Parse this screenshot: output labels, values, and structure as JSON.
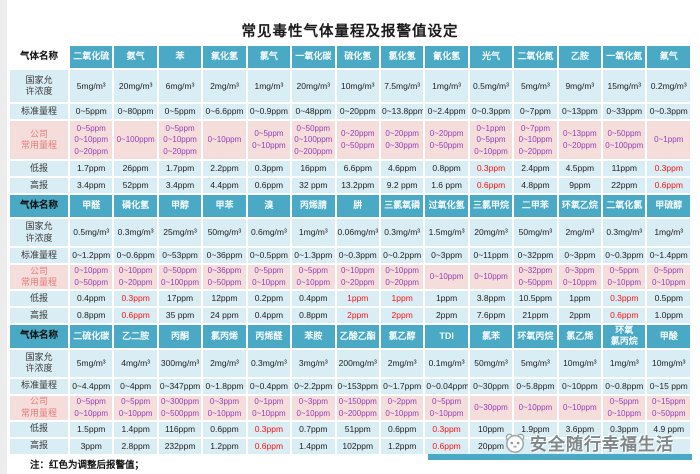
{
  "title": "常见毒性气体量程及报警值设定",
  "note": "注：红色为调整后报警值；",
  "watermark": {
    "text": "安全随行幸福生活",
    "logo": "mascot-logo"
  },
  "colors": {
    "header_teal": "#4AA9C4",
    "row_blue": "#D9EDF4",
    "row_pink": "#F5DDDC",
    "value_purple": "#9440B3",
    "label_rose": "#E57C7C",
    "alert_red": "#FF1414"
  },
  "row_labels": {
    "gas": "气体名称",
    "national": "国家允\n许浓度",
    "standard": "标准量程",
    "company": "公司\n常用量程",
    "low": "低报",
    "high": "高报"
  },
  "sections": [
    {
      "gases": [
        {
          "name": "二氧化硫",
          "limit": "5mg/m³",
          "std": "0~5ppm",
          "company": [
            "0~5ppm",
            "0~10ppm",
            "0~20ppm"
          ],
          "low": {
            "v": "1.7ppm"
          },
          "high": {
            "v": "3.4ppm"
          }
        },
        {
          "name": "氨气",
          "limit": "20mg/m³",
          "std": "0~80ppm",
          "company": [
            "0~100ppm"
          ],
          "low": {
            "v": "26ppm"
          },
          "high": {
            "v": "52ppm"
          }
        },
        {
          "name": "苯",
          "limit": "6mg/m³",
          "std": "0~5ppm",
          "company": [
            "0~5ppm",
            "0~10ppm",
            "0~20ppm"
          ],
          "low": {
            "v": "1.7ppm"
          },
          "high": {
            "v": "3.4ppm"
          }
        },
        {
          "name": "氟化氢",
          "limit": "2mg/m³",
          "std": "0~6.6ppm",
          "company": [
            "0~10ppm"
          ],
          "low": {
            "v": "2.2ppm"
          },
          "high": {
            "v": "4.4ppm"
          }
        },
        {
          "name": "氯气",
          "limit": "1mg/m³",
          "std": "0~0.9ppm",
          "company": [
            "0~5ppm",
            "0~10ppm"
          ],
          "low": {
            "v": "0.3ppm"
          },
          "high": {
            "v": "0.6ppm"
          }
        },
        {
          "name": "一氧化碳",
          "limit": "20mg/m³",
          "std": "0~48ppm",
          "company": [
            "0~50ppm",
            "0~100ppm",
            "0~200ppm"
          ],
          "low": {
            "v": "16ppm"
          },
          "high": {
            "v": "32 ppm"
          }
        },
        {
          "name": "硫化氢",
          "limit": "10mg/m³",
          "std": "0~20ppm",
          "company": [
            "0~20ppm",
            "0~50ppm"
          ],
          "low": {
            "v": "6.6ppm"
          },
          "high": {
            "v": "13.2ppm"
          }
        },
        {
          "name": "氯化氢",
          "limit": "7.5mg/m³",
          "std": "0~13.8ppm",
          "company": [
            "0~20ppm",
            "0~30ppm"
          ],
          "low": {
            "v": "4.6ppm"
          },
          "high": {
            "v": "9.2 ppm"
          }
        },
        {
          "name": "氰化氢",
          "limit": "1mg/m³",
          "std": "0~2.4ppm",
          "company": [
            "0~20ppm",
            "0~50ppm"
          ],
          "low": {
            "v": "0.8ppm"
          },
          "high": {
            "v": "1.6 ppm"
          }
        },
        {
          "name": "光气",
          "limit": "0.5mg/m³",
          "std": "0~0.3ppm",
          "company": [
            "0~1ppm",
            "0~5ppm",
            "0~10ppm"
          ],
          "low": {
            "v": "0.3ppm",
            "red": true
          },
          "high": {
            "v": "0.6ppm",
            "red": true
          }
        },
        {
          "name": "二氧化氮",
          "limit": "5mg/m³",
          "std": "0~7ppm",
          "company": [
            "0~7ppm",
            "0~10ppm",
            "0~20ppm"
          ],
          "low": {
            "v": "2.4ppm"
          },
          "high": {
            "v": "4.8ppm"
          }
        },
        {
          "name": "乙胺",
          "limit": "9mg/m³",
          "std": "0~13ppm",
          "company": [
            "0~13ppm",
            "0~20ppm"
          ],
          "low": {
            "v": "4.5ppm"
          },
          "high": {
            "v": "9ppm"
          }
        },
        {
          "name": "一氧化氮",
          "limit": "15mg/m³",
          "std": "0~33ppm",
          "company": [
            "0~50ppm",
            "0~100ppm"
          ],
          "low": {
            "v": "11ppm"
          },
          "high": {
            "v": "22ppm"
          }
        },
        {
          "name": "氟气",
          "limit": "0.2mg/m³",
          "std": "0~0.3ppm",
          "company": [
            "0~1ppm"
          ],
          "low": {
            "v": "0.3ppm",
            "red": true
          },
          "high": {
            "v": "0.6ppm",
            "red": true
          }
        }
      ]
    },
    {
      "gases": [
        {
          "name": "甲醛",
          "limit": "0.5mg/m³",
          "std": "0~1.2ppm",
          "company": [
            "0~10ppm",
            "0~50ppm"
          ],
          "low": {
            "v": "0.4ppm"
          },
          "high": {
            "v": "0.8ppm"
          }
        },
        {
          "name": "磷化氢",
          "limit": "0.3mg/m³",
          "std": "0~0.6ppm",
          "company": [
            "0~10ppm",
            "0~20ppm"
          ],
          "low": {
            "v": "0.3ppm",
            "red": true
          },
          "high": {
            "v": "0.6ppm",
            "red": true
          }
        },
        {
          "name": "甲醇",
          "limit": "25mg/m³",
          "std": "0~53ppm",
          "company": [
            "0~50ppm",
            "0~100ppm"
          ],
          "low": {
            "v": "17ppm"
          },
          "high": {
            "v": "35 ppm"
          }
        },
        {
          "name": "甲苯",
          "limit": "50mg/m³",
          "std": "0~36ppm",
          "company": [
            "0~36ppm",
            "0~50ppm"
          ],
          "low": {
            "v": "12ppm"
          },
          "high": {
            "v": "24 ppm"
          }
        },
        {
          "name": "溴",
          "limit": "0.6mg/m³",
          "std": "0~0.5ppm",
          "company": [
            "0~5ppm",
            "0~10ppm"
          ],
          "low": {
            "v": "0.2ppm"
          },
          "high": {
            "v": "0.4ppm"
          }
        },
        {
          "name": "丙烯腈",
          "limit": "1mg/m³",
          "std": "0~1.3ppm",
          "company": [
            "0~5ppm",
            "0~10ppm"
          ],
          "low": {
            "v": "0.4ppm"
          },
          "high": {
            "v": "0.8ppm"
          }
        },
        {
          "name": "肼",
          "limit": "0.06mg/m³",
          "std": "0~0.3ppm",
          "company": [
            "0~10ppm",
            "0~20ppm"
          ],
          "low": {
            "v": "1ppm",
            "red": true
          },
          "high": {
            "v": "2ppm",
            "red": true
          }
        },
        {
          "name": "三氯氧磷",
          "limit": "0.3mg/m³",
          "std": "0~0.2ppm",
          "company": [
            "0~10ppm",
            "0~20ppm"
          ],
          "low": {
            "v": "1ppm",
            "red": true
          },
          "high": {
            "v": "2ppm",
            "red": true
          }
        },
        {
          "name": "过氧化氢",
          "limit": "1.5mg/m³",
          "std": "0~3ppm",
          "company": [
            "0~10ppm"
          ],
          "low": {
            "v": "1ppm"
          },
          "high": {
            "v": "2ppm"
          }
        },
        {
          "name": "三氯甲烷",
          "limit": "20mg/m³",
          "std": "0~11ppm",
          "company": [
            "0~10ppm"
          ],
          "low": {
            "v": "3.8ppm"
          },
          "high": {
            "v": "7.6ppm"
          }
        },
        {
          "name": "二甲苯",
          "limit": "50mg/m³",
          "std": "0~32ppm",
          "company": [
            "0~32ppm",
            "0~50ppm"
          ],
          "low": {
            "v": "10.5ppm"
          },
          "high": {
            "v": "21ppm"
          }
        },
        {
          "name": "环氧乙烷",
          "limit": "2mg/m³",
          "std": "0~3ppm",
          "company": [
            "0~3ppm",
            "0~10ppm"
          ],
          "low": {
            "v": "1ppm"
          },
          "high": {
            "v": "2ppm"
          }
        },
        {
          "name": "二氧化氯",
          "limit": "0.3mg/m³",
          "std": "0~0.3ppm",
          "company": [
            "0~5ppm",
            "0~10ppm"
          ],
          "low": {
            "v": "0.3ppm",
            "red": true
          },
          "high": {
            "v": "0.6ppm",
            "red": true
          }
        },
        {
          "name": "甲硫醇",
          "limit": "1mg/m³",
          "std": "0~1.4ppm",
          "company": [
            "0~5ppm",
            "0~10ppm"
          ],
          "low": {
            "v": "0.5ppm"
          },
          "high": {
            "v": "1.0ppm"
          }
        }
      ]
    },
    {
      "gases": [
        {
          "name": "二硫化碳",
          "limit": "5mg/m³",
          "std": "0~4.4ppm",
          "company": [
            "0~5ppm",
            "0~10ppm"
          ],
          "low": {
            "v": "1.5ppm"
          },
          "high": {
            "v": "3ppm"
          }
        },
        {
          "name": "乙二胺",
          "limit": "4mg/m³",
          "std": "0~4ppm",
          "company": [
            "0~5ppm",
            "0~10ppm"
          ],
          "low": {
            "v": "1.4ppm"
          },
          "high": {
            "v": "2.8ppm"
          }
        },
        {
          "name": "丙酮",
          "limit": "300mg/m³",
          "std": "0~347ppm",
          "company": [
            "0~300ppm",
            "0~500ppm"
          ],
          "low": {
            "v": "116ppm"
          },
          "high": {
            "v": "232ppm"
          }
        },
        {
          "name": "氯丙烯",
          "limit": "2mg/m³",
          "std": "0~1.8ppm",
          "company": [
            "0~3ppm",
            "0~10ppm"
          ],
          "low": {
            "v": "0.6ppm"
          },
          "high": {
            "v": "1.2ppm"
          }
        },
        {
          "name": "丙烯醛",
          "limit": "0.3mg/m³",
          "std": "0~0.4ppm",
          "company": [
            "0~1ppm",
            "0~10ppm"
          ],
          "low": {
            "v": "0.3ppm",
            "red": true
          },
          "high": {
            "v": "0.6ppm",
            "red": true
          }
        },
        {
          "name": "苯胺",
          "limit": "3mg/m³",
          "std": "0~2.2ppm",
          "company": [
            "0~3ppm",
            "0~10ppm"
          ],
          "low": {
            "v": "0.7ppm"
          },
          "high": {
            "v": "1.4ppm"
          }
        },
        {
          "name": "乙酸乙酯",
          "limit": "200mg/m³",
          "std": "0~153ppm",
          "company": [
            "0~150ppm",
            "0~200ppm"
          ],
          "low": {
            "v": "51ppm"
          },
          "high": {
            "v": "102ppm"
          }
        },
        {
          "name": "氯乙醇",
          "limit": "2mg/m³",
          "std": "0~1.7ppm",
          "company": [
            "0~2ppm",
            "0~10ppm"
          ],
          "low": {
            "v": "0.6ppm"
          },
          "high": {
            "v": "1.2ppm"
          }
        },
        {
          "name": "TDI",
          "limit": "0.1mg/m³",
          "std": "0~0.04ppm",
          "company": [
            "0~5ppm",
            "0~10ppm"
          ],
          "low": {
            "v": "0.3ppm",
            "red": true
          },
          "high": {
            "v": "0.6ppm",
            "red": true
          }
        },
        {
          "name": "氯苯",
          "limit": "50mg/m³",
          "std": "0~30ppm",
          "company": [
            "0~30ppm"
          ],
          "low": {
            "v": "10ppm"
          },
          "high": {
            "v": "20ppm"
          }
        },
        {
          "name": "环氧丙烷",
          "limit": "5mg/m³",
          "std": "0~5.8ppm",
          "company": [
            "0~10ppm"
          ],
          "low": {
            "v": "1.9ppm"
          },
          "high": {
            "v": ""
          }
        },
        {
          "name": "氯乙烯",
          "limit": "10mg/m³",
          "std": "0~10ppm",
          "company": [
            "0~10ppm"
          ],
          "low": {
            "v": "3.6ppm"
          },
          "high": {
            "v": ""
          }
        },
        {
          "name": "环氧\n氯丙烷",
          "limit": "1mg/m³",
          "std": "0~0.8ppm",
          "company": [
            "0~5ppm",
            "0~10ppm"
          ],
          "low": {
            "v": "0.3ppm"
          },
          "high": {
            "v": ""
          }
        },
        {
          "name": "甲酸",
          "limit": "10mg/m³",
          "std": "0~15 ppm",
          "company": [
            "0~15ppm",
            "0~50ppm"
          ],
          "low": {
            "v": "4.9 ppm"
          },
          "high": {
            "v": ""
          }
        }
      ]
    }
  ]
}
